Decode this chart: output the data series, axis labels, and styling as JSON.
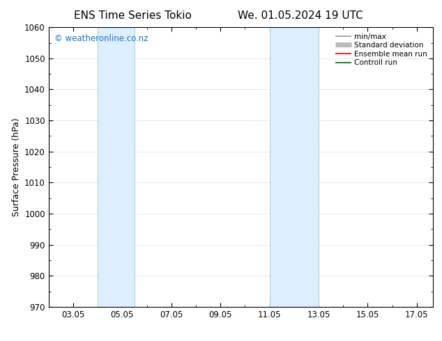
{
  "title_left": "ENS Time Series Tokio",
  "title_right": "We. 01.05.2024 19 UTC",
  "ylabel": "Surface Pressure (hPa)",
  "xlim": [
    2.0,
    17.67
  ],
  "ylim": [
    970,
    1060
  ],
  "yticks": [
    970,
    980,
    990,
    1000,
    1010,
    1020,
    1030,
    1040,
    1050,
    1060
  ],
  "xtick_labels": [
    "03.05",
    "05.05",
    "07.05",
    "09.05",
    "11.05",
    "13.05",
    "15.05",
    "17.05"
  ],
  "xtick_positions": [
    3.0,
    5.0,
    7.0,
    9.0,
    11.0,
    13.0,
    15.0,
    17.0
  ],
  "shaded_regions": [
    {
      "xmin": 4.0,
      "xmax": 5.5
    },
    {
      "xmin": 11.0,
      "xmax": 13.0
    }
  ],
  "shaded_color": "#ddeeff",
  "shaded_border_color": "#aaccdd",
  "watermark_text": "© weatheronline.co.nz",
  "watermark_color": "#1a6fc4",
  "legend_entries": [
    {
      "label": "min/max",
      "color": "#999999",
      "lw": 1.2
    },
    {
      "label": "Standard deviation",
      "color": "#bbbbbb",
      "lw": 5
    },
    {
      "label": "Ensemble mean run",
      "color": "#dd0000",
      "lw": 1.2
    },
    {
      "label": "Controll run",
      "color": "#006600",
      "lw": 1.2
    }
  ],
  "bg_color": "#ffffff",
  "grid_color": "#dddddd",
  "title_fontsize": 11,
  "label_fontsize": 9,
  "tick_fontsize": 8.5,
  "watermark_fontsize": 8.5,
  "legend_fontsize": 7.5
}
